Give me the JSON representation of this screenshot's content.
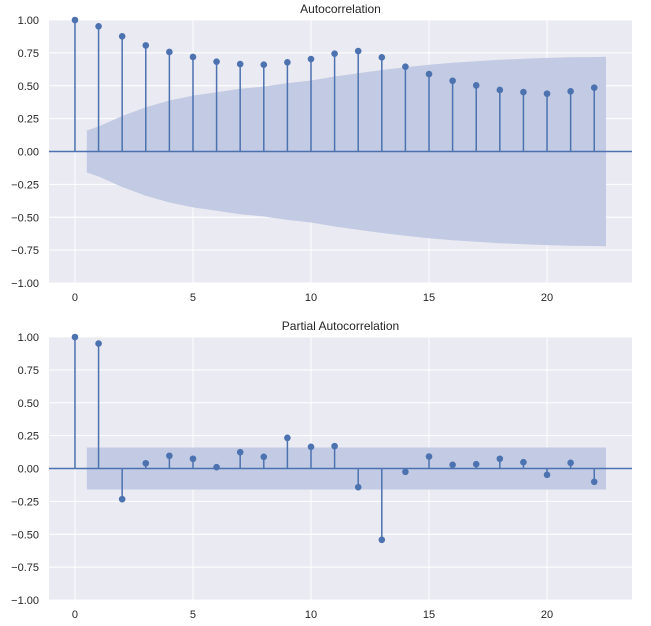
{
  "chart_data": [
    {
      "type": "stem",
      "title": "Autocorrelation",
      "xlabel": "",
      "ylabel": "",
      "xlim": [
        -1.1,
        23.6
      ],
      "ylim": [
        -1.0,
        1.0
      ],
      "xticks": [
        0,
        5,
        10,
        15,
        20
      ],
      "xtick_labels": [
        "0",
        "5",
        "10",
        "15",
        "20"
      ],
      "yticks": [
        -1.0,
        -0.75,
        -0.5,
        -0.25,
        0.0,
        0.25,
        0.5,
        0.75,
        1.0
      ],
      "ytick_labels": [
        "−1.00",
        "−0.75",
        "−0.50",
        "−0.25",
        "0.00",
        "0.25",
        "0.50",
        "0.75",
        "1.00"
      ],
      "grid": true,
      "lags": [
        0,
        1,
        2,
        3,
        4,
        5,
        6,
        7,
        8,
        9,
        10,
        11,
        12,
        13,
        14,
        15,
        16,
        17,
        18,
        19,
        20,
        21,
        22
      ],
      "values": [
        1.0,
        0.952,
        0.876,
        0.807,
        0.757,
        0.719,
        0.683,
        0.665,
        0.66,
        0.678,
        0.703,
        0.744,
        0.764,
        0.716,
        0.645,
        0.589,
        0.538,
        0.503,
        0.468,
        0.452,
        0.44,
        0.458,
        0.485
      ],
      "confidence_band": {
        "x": [
          0.5,
          1,
          2,
          3,
          4,
          5,
          6,
          7,
          8,
          9,
          10,
          11,
          12,
          13,
          14,
          15,
          16,
          17,
          18,
          19,
          20,
          21,
          22,
          22.5
        ],
        "upper": [
          0.16,
          0.19,
          0.27,
          0.337,
          0.388,
          0.425,
          0.45,
          0.477,
          0.494,
          0.52,
          0.54,
          0.57,
          0.595,
          0.62,
          0.64,
          0.66,
          0.675,
          0.687,
          0.697,
          0.705,
          0.712,
          0.717,
          0.719,
          0.72
        ]
      }
    },
    {
      "type": "stem",
      "title": "Partial Autocorrelation",
      "xlabel": "",
      "ylabel": "",
      "xlim": [
        -1.1,
        23.6
      ],
      "ylim": [
        -1.0,
        1.0
      ],
      "xticks": [
        0,
        5,
        10,
        15,
        20
      ],
      "xtick_labels": [
        "0",
        "5",
        "10",
        "15",
        "20"
      ],
      "yticks": [
        -1.0,
        -0.75,
        -0.5,
        -0.25,
        0.0,
        0.25,
        0.5,
        0.75,
        1.0
      ],
      "ytick_labels": [
        "−1.00",
        "−0.75",
        "−0.50",
        "−0.25",
        "0.00",
        "0.25",
        "0.50",
        "0.75",
        "1.00"
      ],
      "grid": true,
      "lags": [
        0,
        1,
        2,
        3,
        4,
        5,
        6,
        7,
        8,
        9,
        10,
        11,
        12,
        13,
        14,
        15,
        16,
        17,
        18,
        19,
        20,
        21,
        22
      ],
      "values": [
        1.0,
        0.95,
        -0.233,
        0.04,
        0.097,
        0.074,
        0.01,
        0.124,
        0.089,
        0.233,
        0.165,
        0.17,
        -0.142,
        -0.542,
        -0.025,
        0.091,
        0.028,
        0.033,
        0.074,
        0.048,
        -0.048,
        0.043,
        -0.101
      ],
      "confidence_band": {
        "x": [
          0.5,
          22.5
        ],
        "upper": [
          0.16,
          0.16
        ]
      }
    }
  ],
  "style": {
    "background": "#ffffff",
    "axes_face": "#eaeaf2",
    "grid": "#ffffff",
    "stem": "#4c72b0",
    "band": "#c2cbe3",
    "text": "#262626"
  }
}
